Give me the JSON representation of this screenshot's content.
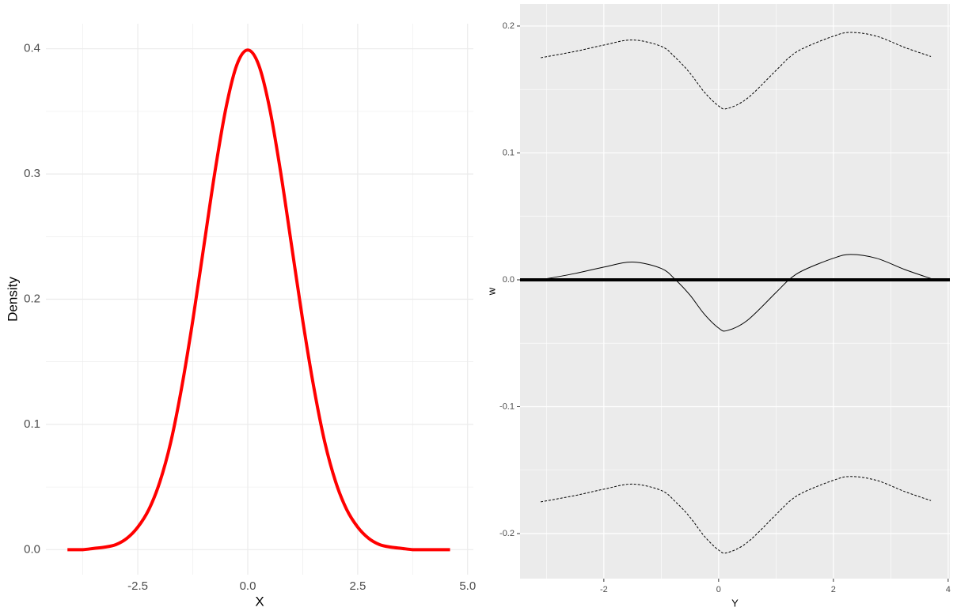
{
  "chart_data": [
    {
      "type": "line",
      "x_label": "X",
      "y_label": "Density",
      "x": [
        -4.1,
        -3.75,
        -3.5,
        -3.25,
        -3.0,
        -2.75,
        -2.5,
        -2.25,
        -2.0,
        -1.75,
        -1.5,
        -1.25,
        -1.0,
        -0.75,
        -0.5,
        -0.25,
        0,
        0.25,
        0.5,
        0.75,
        1.0,
        1.25,
        1.5,
        1.75,
        2.0,
        2.25,
        2.5,
        2.75,
        3.0,
        3.25,
        3.5,
        3.75,
        4.0,
        4.25,
        4.6
      ],
      "series": [
        {
          "color": "#ff0000",
          "width": 4,
          "values": [
            0.0,
            0.0,
            0.001,
            0.002,
            0.004,
            0.009,
            0.018,
            0.032,
            0.054,
            0.086,
            0.13,
            0.183,
            0.242,
            0.301,
            0.352,
            0.387,
            0.399,
            0.387,
            0.352,
            0.301,
            0.242,
            0.183,
            0.13,
            0.086,
            0.054,
            0.032,
            0.018,
            0.009,
            0.004,
            0.002,
            0.001,
            0.0,
            0.0,
            0.0,
            0.0
          ]
        }
      ],
      "xlim": [
        -4.59,
        5.13
      ],
      "ylim": [
        -0.02,
        0.42
      ],
      "xticks": [
        -2.5,
        {
          "value": 0,
          "label": "0.0"
        },
        2.5,
        {
          "value": 5,
          "label": "5.0"
        }
      ],
      "yticks": [
        {
          "value": 0,
          "label": "0.0"
        },
        0.1,
        0.2,
        0.3,
        0.4
      ],
      "grid": true,
      "background": "#ffffff",
      "grid_color": "#ebebeb"
    },
    {
      "type": "line",
      "x_label": "Y",
      "y_label": "w",
      "x": [
        -3.1,
        -2.5,
        -2,
        -1.5,
        -1,
        -0.75,
        -0.5,
        -0.25,
        0,
        0.15,
        0.5,
        1,
        1.25,
        1.5,
        2,
        2.3,
        2.75,
        3.25,
        3.7
      ],
      "series": [
        {
          "color": "#000000",
          "width": 1,
          "dashed": true,
          "values": [
            0.175,
            0.18,
            0.185,
            0.189,
            0.184,
            0.175,
            0.163,
            0.148,
            0.137,
            0.135,
            0.143,
            0.165,
            0.176,
            0.183,
            0.192,
            0.195,
            0.192,
            0.183,
            0.176
          ]
        },
        {
          "color": "#000000",
          "width": 1,
          "values": [
            0,
            0.005,
            0.01,
            0.014,
            0.009,
            0.0,
            -0.012,
            -0.027,
            -0.038,
            -0.04,
            -0.032,
            -0.01,
            0.001,
            0.008,
            0.017,
            0.02,
            0.017,
            0.008,
            0.001
          ]
        },
        {
          "color": "#000000",
          "width": 1,
          "dashed": true,
          "values": [
            -0.175,
            -0.17,
            -0.165,
            -0.161,
            -0.166,
            -0.175,
            -0.187,
            -0.202,
            -0.213,
            -0.215,
            -0.207,
            -0.185,
            -0.174,
            -0.167,
            -0.158,
            -0.155,
            -0.158,
            -0.167,
            -0.174
          ]
        }
      ],
      "hline": 0,
      "xlim": [
        -3.46,
        4.03
      ],
      "ylim": [
        -0.2355,
        0.2174
      ],
      "xticks": [
        -2,
        0,
        2,
        4
      ],
      "yticks": [
        {
          "value": -0.2,
          "label": "-0.2"
        },
        {
          "value": -0.1,
          "label": "-0.1"
        },
        {
          "value": 0,
          "label": "0.0"
        },
        0.1,
        0.2
      ],
      "grid": true,
      "background": "#ebebeb",
      "grid_color": "#ffffff"
    }
  ]
}
